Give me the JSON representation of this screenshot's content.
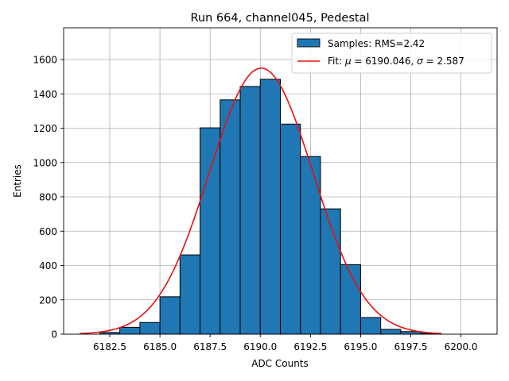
{
  "chart_data": {
    "type": "bar",
    "title": "Run 664, channel045, Pedestal",
    "xlabel": "ADC Counts",
    "ylabel": "Entries",
    "xlim": [
      6180.2,
      6201.8
    ],
    "ylim": [
      0,
      1785
    ],
    "xticks": [
      6182.5,
      6185.0,
      6187.5,
      6190.0,
      6192.5,
      6195.0,
      6197.5,
      6200.0
    ],
    "xtick_labels": [
      "6182.5",
      "6185.0",
      "6187.5",
      "6190.0",
      "6192.5",
      "6195.0",
      "6197.5",
      "6200.0"
    ],
    "yticks": [
      0,
      200,
      400,
      600,
      800,
      1000,
      1200,
      1400,
      1600
    ],
    "ytick_labels": [
      "0",
      "200",
      "400",
      "600",
      "800",
      "1000",
      "1200",
      "1400",
      "1600"
    ],
    "grid": true,
    "legend_position": "top-right",
    "histogram": {
      "name": "Samples: RMS=2.42",
      "color": "#1f77b4",
      "edge_color": "#000000",
      "bin_width": 1,
      "bin_lefts": [
        6182,
        6183,
        6184,
        6185,
        6186,
        6187,
        6188,
        6189,
        6190,
        6191,
        6192,
        6193,
        6194,
        6195,
        6196,
        6197,
        6198
      ],
      "counts": [
        10,
        40,
        68,
        218,
        462,
        1202,
        1365,
        1443,
        1485,
        1224,
        1035,
        730,
        405,
        97,
        28,
        15,
        5
      ]
    },
    "fit": {
      "name_prefix": "Fit: ",
      "mu_symbol": "μ",
      "sigma_symbol": "σ",
      "eq": " = ",
      "mu": "6190.046",
      "sep": ", ",
      "sigma": "2.587",
      "mu_value": 6190.046,
      "sigma_value": 2.587,
      "amplitude": 1550,
      "x_range": [
        6181,
        6199
      ],
      "color": "#e81010"
    }
  }
}
